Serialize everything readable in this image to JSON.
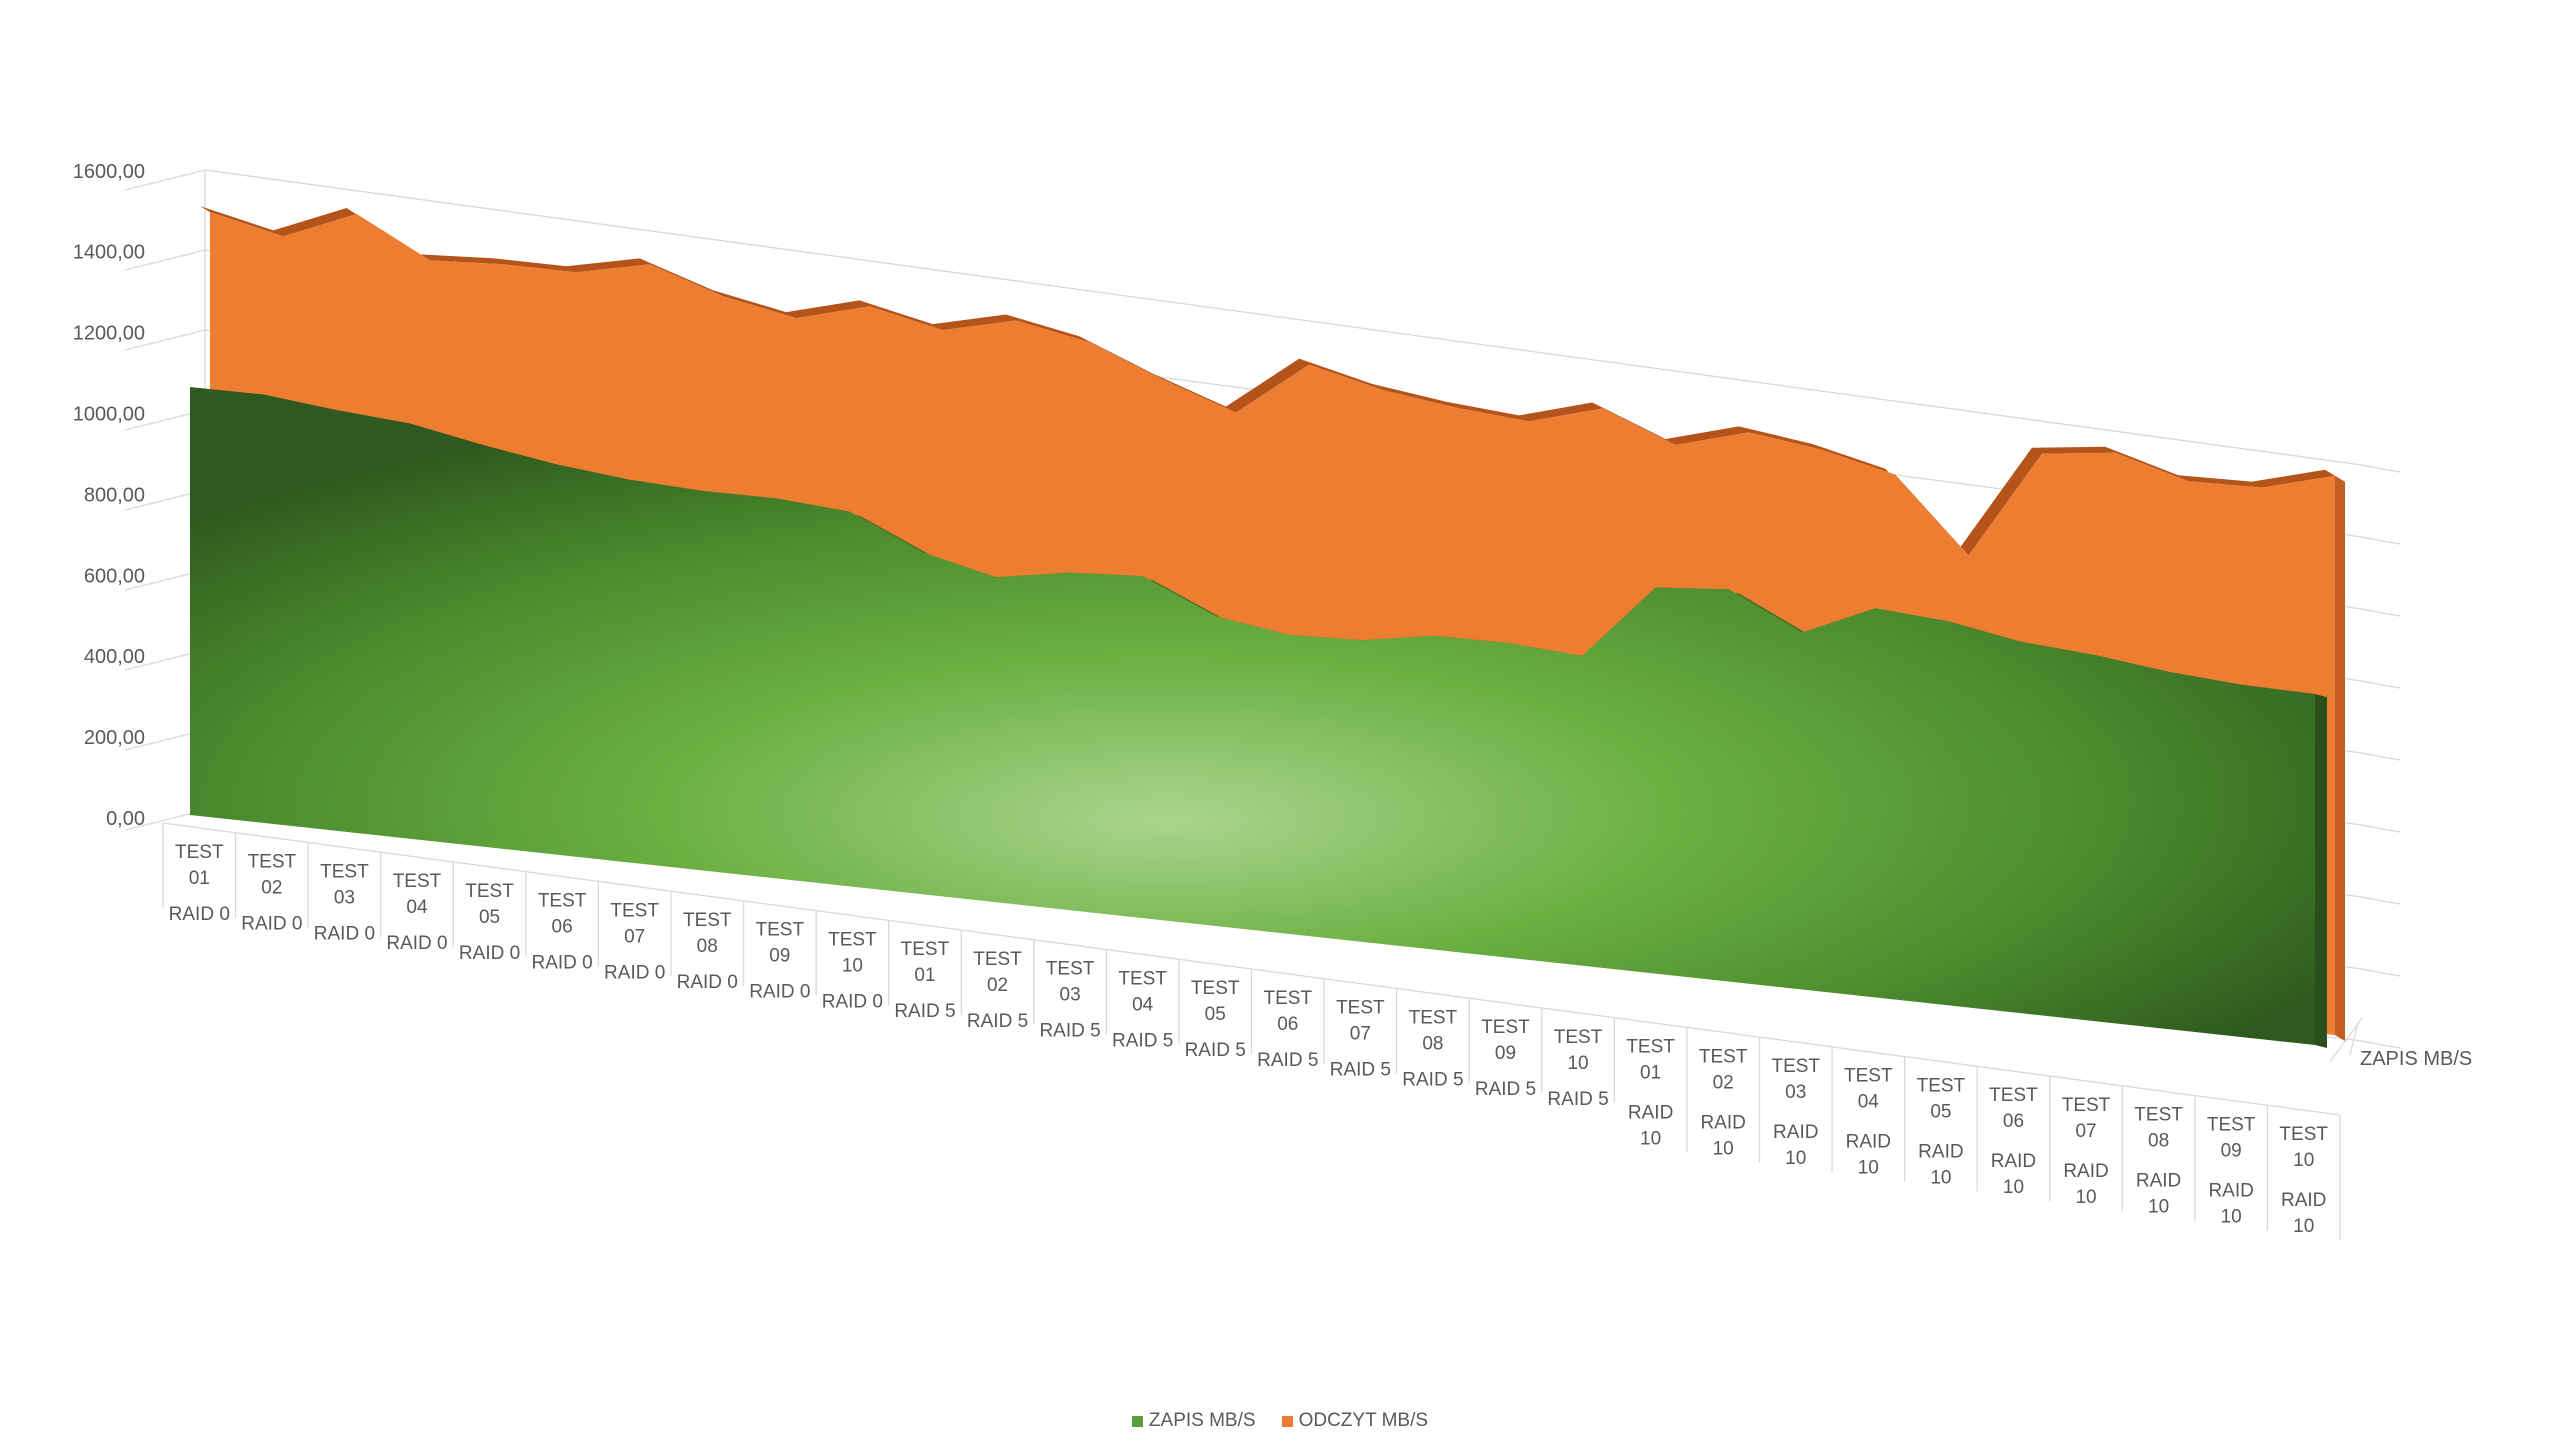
{
  "chart_data": {
    "type": "area",
    "three_d": true,
    "categories": [
      [
        "TEST 01",
        "RAID 0"
      ],
      [
        "TEST 02",
        "RAID 0"
      ],
      [
        "TEST 03",
        "RAID 0"
      ],
      [
        "TEST 04",
        "RAID 0"
      ],
      [
        "TEST 05",
        "RAID 0"
      ],
      [
        "TEST 06",
        "RAID 0"
      ],
      [
        "TEST 07",
        "RAID 0"
      ],
      [
        "TEST 08",
        "RAID 0"
      ],
      [
        "TEST 09",
        "RAID 0"
      ],
      [
        "TEST 10",
        "RAID 0"
      ],
      [
        "TEST 01",
        "RAID 5"
      ],
      [
        "TEST 02",
        "RAID 5"
      ],
      [
        "TEST 03",
        "RAID 5"
      ],
      [
        "TEST 04",
        "RAID 5"
      ],
      [
        "TEST 05",
        "RAID 5"
      ],
      [
        "TEST 06",
        "RAID 5"
      ],
      [
        "TEST 07",
        "RAID 5"
      ],
      [
        "TEST 08",
        "RAID 5"
      ],
      [
        "TEST 09",
        "RAID 5"
      ],
      [
        "TEST 10",
        "RAID 5"
      ],
      [
        "TEST 01",
        "RAID 10"
      ],
      [
        "TEST 02",
        "RAID 10"
      ],
      [
        "TEST 03",
        "RAID 10"
      ],
      [
        "TEST 04",
        "RAID 10"
      ],
      [
        "TEST 05",
        "RAID 10"
      ],
      [
        "TEST 06",
        "RAID 10"
      ],
      [
        "TEST 07",
        "RAID 10"
      ],
      [
        "TEST 08",
        "RAID 10"
      ],
      [
        "TEST 09",
        "RAID 10"
      ],
      [
        "TEST 10",
        "RAID 10"
      ]
    ],
    "y_ticks": [
      "0,00",
      "200,00",
      "400,00",
      "600,00",
      "800,00",
      "1000,00",
      "1200,00",
      "1400,00",
      "1600,00"
    ],
    "ylim": [
      0,
      1600
    ],
    "series_axis_label": "ZAPIS MB/S",
    "series": [
      {
        "name": "ZAPIS MB/S",
        "color": "#5a9e3a",
        "values": [
          1050,
          1055,
          1040,
          1030,
          1000,
          975,
          960,
          955,
          960,
          950,
          870,
          830,
          865,
          880,
          800,
          775,
          785,
          820,
          825,
          815,
          1020,
          1040,
          950,
          1040,
          1030,
          1000,
          990,
          970,
          960,
          960
        ]
      },
      {
        "name": "ODCZYT MB/S",
        "color": "#ed7d31",
        "values": [
          1455,
          1420,
          1500,
          1410,
          1425,
          1430,
          1475,
          1420,
          1390,
          1445,
          1410,
          1460,
          1430,
          1360,
          1300,
          1450,
          1410,
          1390,
          1380,
          1440,
          1370,
          1430,
          1410,
          1370,
          1180,
          1480,
          1510,
          1460,
          1470,
          1530
        ]
      }
    ],
    "legend": [
      {
        "label": "ZAPIS MB/S",
        "color": "#5a9e3a"
      },
      {
        "label": "ODCZYT MB/S",
        "color": "#ed7d31"
      }
    ],
    "legend_position": "bottom",
    "grid": true
  }
}
